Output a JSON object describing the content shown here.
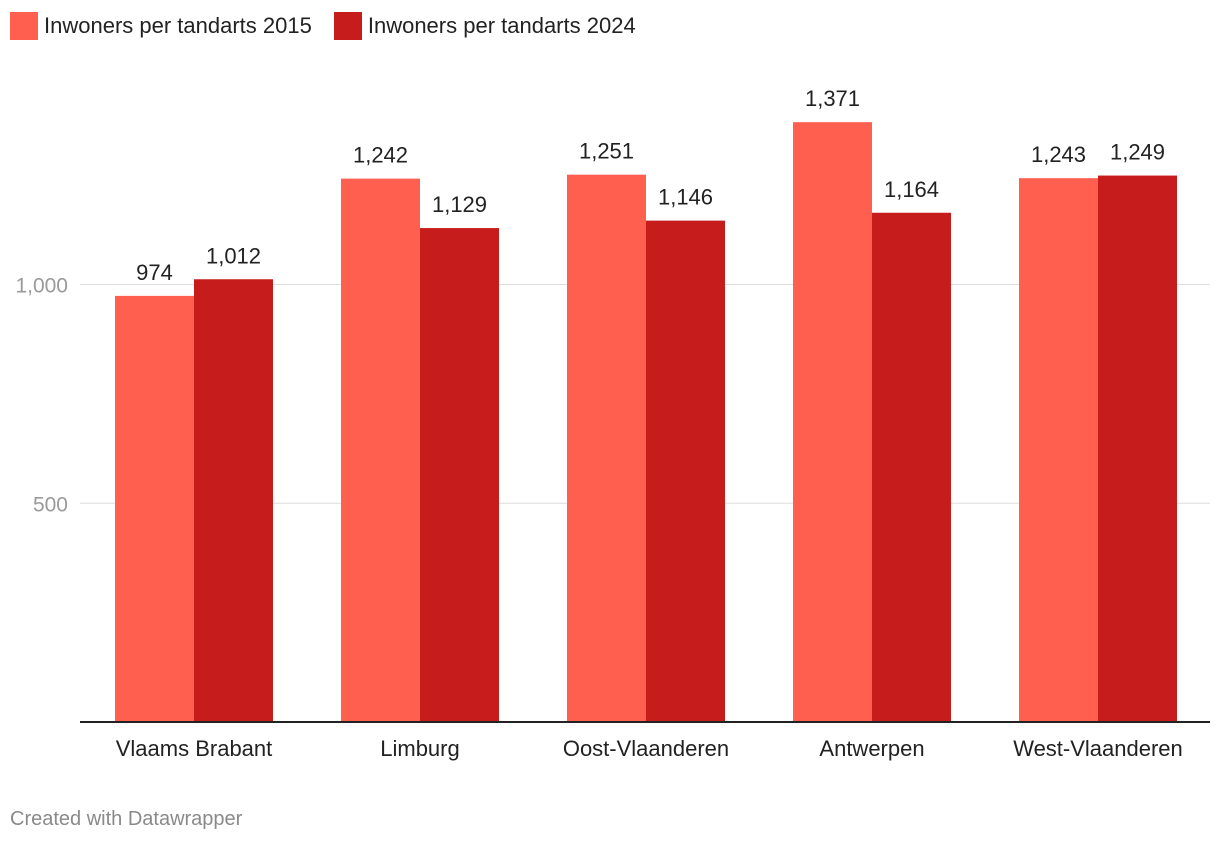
{
  "chart_data": {
    "type": "bar",
    "title": "",
    "xlabel": "",
    "ylabel": "",
    "categories": [
      "Vlaams Brabant",
      "Limburg",
      "Oost-Vlaanderen",
      "Antwerpen",
      "West-Vlaanderen"
    ],
    "series": [
      {
        "name": "Inwoners per tandarts 2015",
        "color": "#ff5f4e",
        "values": [
          974,
          1242,
          1251,
          1371,
          1243
        ],
        "labels": [
          "974",
          "1,242",
          "1,251",
          "1,371",
          "1,243"
        ]
      },
      {
        "name": "Inwoners per tandarts 2024",
        "color": "#c71c1c",
        "values": [
          1012,
          1129,
          1146,
          1164,
          1249
        ],
        "labels": [
          "1,012",
          "1,129",
          "1,146",
          "1,164",
          "1,249"
        ]
      }
    ],
    "yticks": [
      500,
      1000
    ],
    "ytick_labels": [
      "500",
      "1,000"
    ],
    "ylim": [
      0,
      1470
    ],
    "grid": true,
    "legend_position": "top-left"
  },
  "credit": "Created with Datawrapper"
}
